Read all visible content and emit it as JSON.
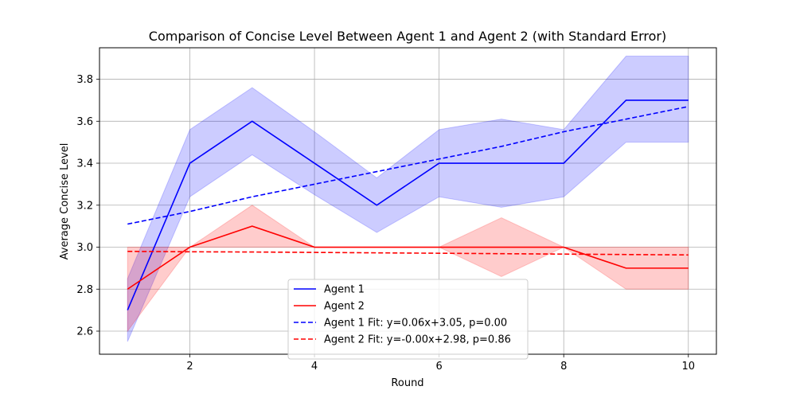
{
  "chart_data": {
    "type": "line",
    "title": "Comparison of Concise Level Between Agent 1 and Agent 2 (with Standard Error)",
    "xlabel": "Round",
    "ylabel": "Average Concise Level",
    "xlim": [
      0.55,
      10.45
    ],
    "ylim": [
      2.49,
      3.95
    ],
    "xticks": [
      2,
      4,
      6,
      8,
      10
    ],
    "yticks": [
      2.6,
      2.8,
      3.0,
      3.2,
      3.4,
      3.6,
      3.8
    ],
    "grid": true,
    "legend_position": "bottom-center",
    "x": [
      1,
      2,
      3,
      4,
      5,
      6,
      7,
      8,
      9,
      10
    ],
    "series": [
      {
        "name": "Agent 1",
        "color": "#0000ff",
        "style": "solid",
        "values": [
          2.7,
          3.4,
          3.6,
          3.4,
          3.2,
          3.4,
          3.4,
          3.4,
          3.7,
          3.7
        ],
        "lower": [
          2.55,
          3.24,
          3.44,
          3.25,
          3.07,
          3.24,
          3.19,
          3.24,
          3.5,
          3.5
        ],
        "upper": [
          2.85,
          3.56,
          3.76,
          3.55,
          3.33,
          3.56,
          3.61,
          3.56,
          3.91,
          3.91
        ]
      },
      {
        "name": "Agent 2",
        "color": "#ff0000",
        "style": "solid",
        "values": [
          2.8,
          3.0,
          3.1,
          3.0,
          3.0,
          3.0,
          3.0,
          3.0,
          2.9,
          2.9
        ],
        "lower": [
          2.6,
          3.0,
          3.0,
          3.0,
          3.0,
          3.0,
          2.86,
          3.0,
          2.8,
          2.8
        ],
        "upper": [
          3.0,
          3.0,
          3.2,
          3.0,
          3.0,
          3.0,
          3.14,
          3.0,
          3.0,
          3.0
        ]
      },
      {
        "name": "Agent 1 Fit: y=0.06x+3.05, p=0.00",
        "color": "#0000ff",
        "style": "dashed",
        "values": [
          3.11,
          3.17,
          3.24,
          3.3,
          3.36,
          3.42,
          3.48,
          3.55,
          3.61,
          3.67
        ]
      },
      {
        "name": "Agent 2 Fit: y=-0.00x+2.98, p=0.86",
        "color": "#ff0000",
        "style": "dashed",
        "values": [
          2.98,
          2.978,
          2.977,
          2.975,
          2.973,
          2.971,
          2.969,
          2.967,
          2.965,
          2.963
        ]
      }
    ]
  }
}
